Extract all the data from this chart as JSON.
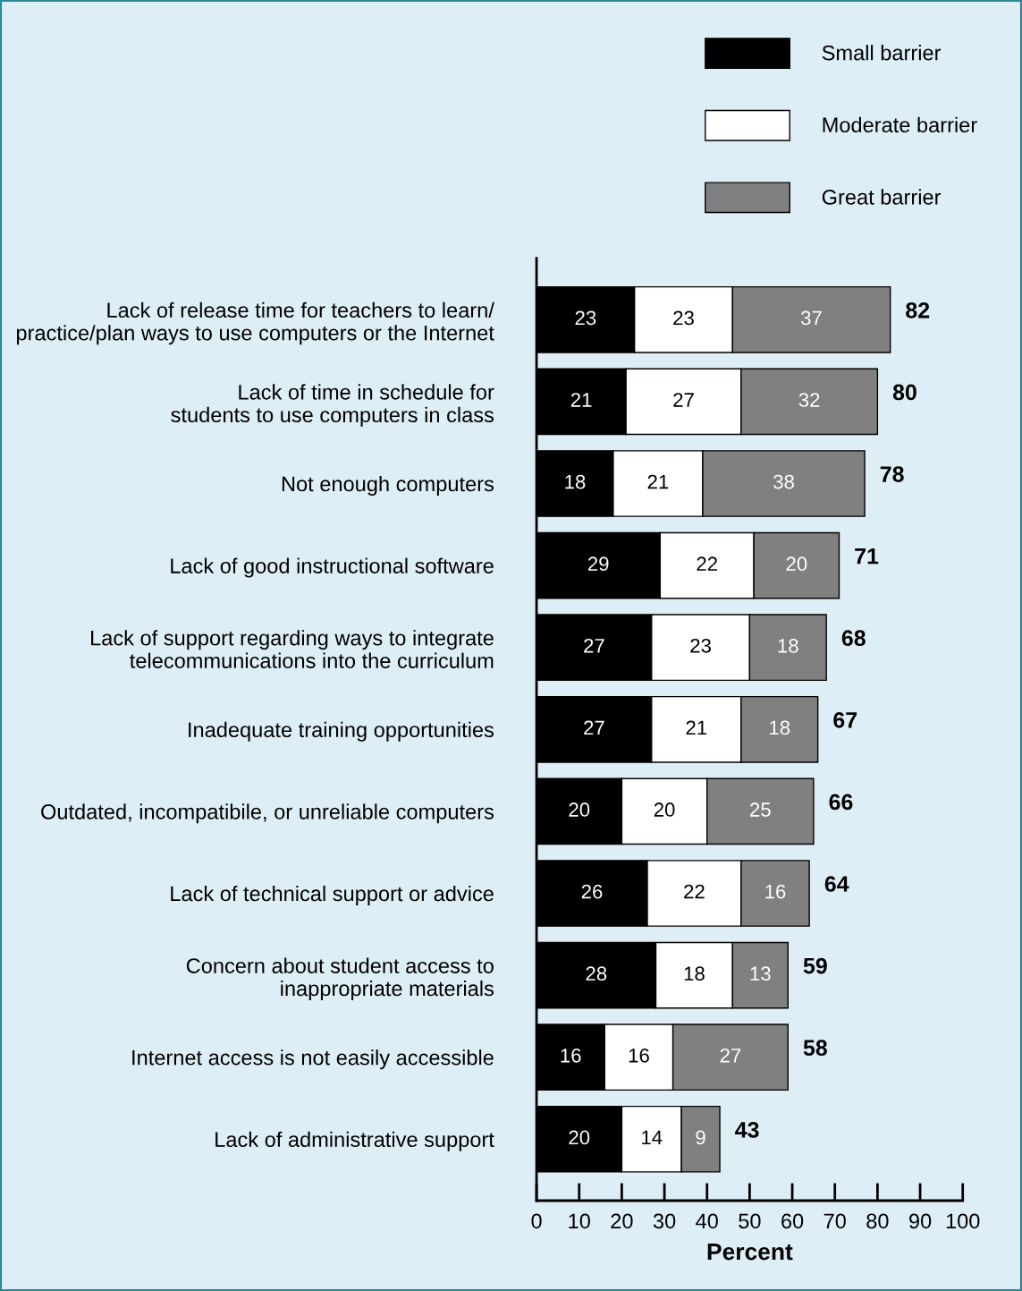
{
  "chart_data": {
    "type": "bar",
    "orientation": "horizontal",
    "stacked": true,
    "xlabel": "Percent",
    "categories": [
      "Lack of release time for teachers to learn/\npractice/plan ways to use computers or the Internet",
      "Lack of time in schedule for\nstudents to use computers in class",
      "Not enough computers",
      "Lack of good instructional software",
      "Lack of support regarding ways to integrate\ntelecommunications into the curriculum",
      "Inadequate training opportunities",
      "Outdated, incompatibile, or unreliable computers",
      "Lack of technical support or advice",
      "Concern about student access to\ninappropriate materials",
      "Internet access is not easily accessible",
      "Lack of administrative support"
    ],
    "series": [
      {
        "name": "Small barrier",
        "color": "#000000",
        "values": [
          23,
          21,
          18,
          29,
          27,
          27,
          20,
          26,
          28,
          16,
          20
        ]
      },
      {
        "name": "Moderate barrier",
        "color": "#ffffff",
        "values": [
          23,
          27,
          21,
          22,
          23,
          21,
          20,
          22,
          18,
          16,
          14
        ]
      },
      {
        "name": "Great barrier",
        "color": "#808080",
        "values": [
          37,
          32,
          38,
          20,
          18,
          18,
          25,
          16,
          13,
          27,
          9
        ]
      }
    ],
    "totals": [
      "82",
      "80",
      "78",
      "71",
      "68",
      "67",
      "66",
      "64",
      "59",
      "58",
      "43"
    ],
    "data_labels": true,
    "xlim": [
      0,
      100
    ],
    "xticks": [
      0,
      10,
      20,
      30,
      40,
      50,
      60,
      70,
      80,
      90,
      100
    ],
    "grid": false,
    "legend": "top right"
  }
}
